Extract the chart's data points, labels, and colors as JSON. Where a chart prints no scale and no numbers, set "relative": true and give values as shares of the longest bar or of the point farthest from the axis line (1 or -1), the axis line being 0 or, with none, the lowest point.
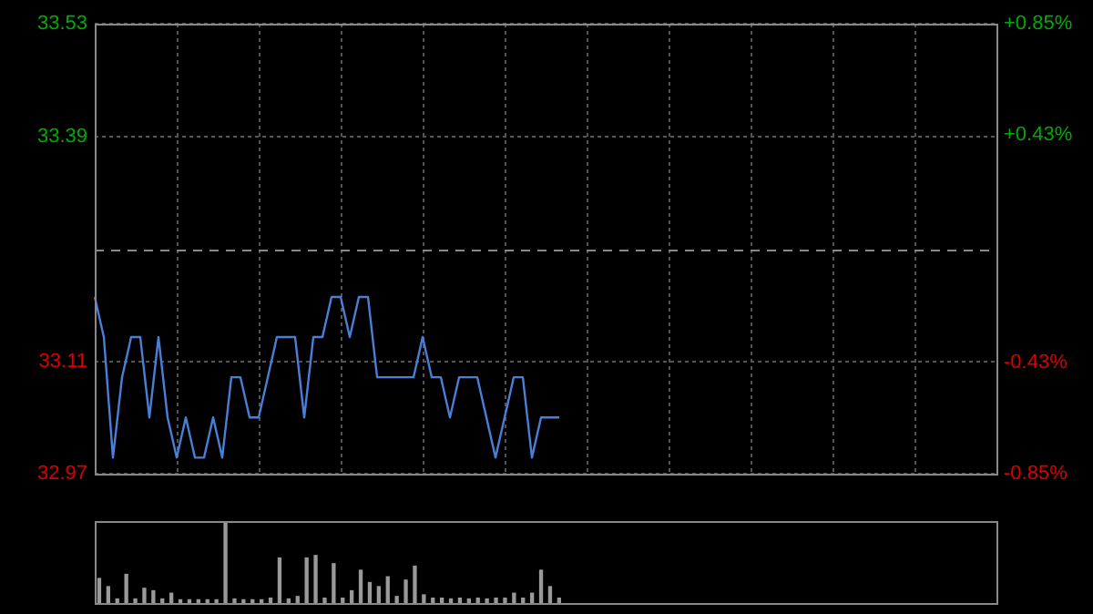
{
  "chart_data": [
    {
      "type": "line",
      "categories": [
        null,
        null,
        null,
        null,
        null,
        null,
        null,
        null,
        null,
        null,
        null,
        null,
        null,
        null,
        null,
        null,
        null,
        null,
        null,
        null,
        null,
        null,
        null,
        null,
        null,
        null,
        null,
        null,
        null,
        null,
        null,
        null,
        null,
        null,
        null,
        null,
        null,
        null,
        null,
        null,
        null,
        null,
        null,
        null,
        null,
        null,
        null,
        null,
        null,
        null,
        null,
        null,
        null,
        null,
        null,
        null,
        null,
        null,
        null,
        null,
        null,
        null,
        null,
        null,
        null,
        null,
        null,
        null,
        null,
        null,
        null,
        null,
        null,
        null,
        null,
        null,
        null,
        null,
        null,
        null,
        null,
        null,
        null,
        null,
        null,
        null,
        null,
        null,
        null,
        null,
        null,
        null,
        null,
        null,
        null,
        null,
        null,
        null,
        null,
        null
      ],
      "series": [
        {
          "color": "#4a7fd8",
          "values": [
            33.19,
            33.14,
            32.99,
            33.09,
            33.14,
            33.14,
            33.04,
            33.14,
            33.04,
            32.99,
            33.04,
            32.99,
            32.99,
            33.04,
            32.99,
            33.09,
            33.09,
            33.04,
            33.04,
            33.09,
            33.14,
            33.14,
            33.14,
            33.04,
            33.14,
            33.14,
            33.19,
            33.19,
            33.14,
            33.19,
            33.19,
            33.09,
            33.09,
            33.09,
            33.09,
            33.09,
            33.14,
            33.09,
            33.09,
            33.04,
            33.09,
            33.09,
            33.09,
            33.04,
            32.99,
            33.04,
            33.09,
            33.09,
            32.99,
            33.04,
            33.04,
            33.04,
            null,
            null,
            null,
            null,
            null,
            null,
            null,
            null,
            null,
            null,
            null,
            null,
            null,
            null,
            null,
            null,
            null,
            null,
            null,
            null,
            null,
            null,
            null,
            null,
            null,
            null,
            null,
            null,
            null,
            null,
            null,
            null,
            null,
            null,
            null,
            null,
            null,
            null,
            null,
            null,
            null,
            null,
            null,
            null,
            null,
            null,
            null,
            null
          ]
        }
      ],
      "ylim": [
        32.97,
        33.53
      ],
      "yticks": [
        32.97,
        33.11,
        33.39,
        33.53
      ],
      "y2lim": [
        -0.85,
        0.85
      ],
      "y2ticks": [
        {
          "value": -0.85,
          "label": "-0.85%"
        },
        {
          "value": -0.43,
          "label": "-0.43%"
        },
        {
          "value": 0.43,
          "label": "+0.43%"
        },
        {
          "value": 0.85,
          "label": "+0.85%"
        }
      ],
      "ref_lines": [
        {
          "axis": "y",
          "value": 33.25,
          "color": "#888888",
          "line_style": "dashed"
        }
      ],
      "grid": true,
      "legend": false,
      "marker": "none",
      "tick_labels": "y"
    },
    {
      "type": "bar",
      "relative": true,
      "categories": [
        null,
        null,
        null,
        null,
        null,
        null,
        null,
        null,
        null,
        null,
        null,
        null,
        null,
        null,
        null,
        null,
        null,
        null,
        null,
        null,
        null,
        null,
        null,
        null,
        null,
        null,
        null,
        null,
        null,
        null,
        null,
        null,
        null,
        null,
        null,
        null,
        null,
        null,
        null,
        null,
        null,
        null,
        null,
        null,
        null,
        null,
        null,
        null,
        null,
        null,
        null,
        null,
        null,
        null,
        null,
        null,
        null,
        null,
        null,
        null,
        null,
        null,
        null,
        null,
        null,
        null,
        null,
        null,
        null,
        null,
        null,
        null,
        null,
        null,
        null,
        null,
        null,
        null,
        null,
        null,
        null,
        null,
        null,
        null,
        null,
        null,
        null,
        null,
        null,
        null,
        null,
        null,
        null,
        null,
        null,
        null,
        null,
        null,
        null,
        null
      ],
      "series": [
        {
          "color": "#999999",
          "values": [
            0.3,
            0.2,
            0.05,
            0.35,
            0.05,
            0.18,
            0.15,
            0.05,
            0.12,
            0.04,
            0.04,
            0.04,
            0.04,
            0.04,
            1,
            0.05,
            0.04,
            0.04,
            0.04,
            0.06,
            0.55,
            0.05,
            0.08,
            0.55,
            0.58,
            0.06,
            0.48,
            0.06,
            0.15,
            0.4,
            0.25,
            0.2,
            0.32,
            0.08,
            0.28,
            0.45,
            0.1,
            0.06,
            0.06,
            0.05,
            0.06,
            0.05,
            0.06,
            0.05,
            0.06,
            0.06,
            0.12,
            0.06,
            0.12,
            0.4,
            0.2,
            0.06,
            null,
            null,
            null,
            null,
            null,
            null,
            null,
            null,
            null,
            null,
            null,
            null,
            null,
            null,
            null,
            null,
            null,
            null,
            null,
            null,
            null,
            null,
            null,
            null,
            null,
            null,
            null,
            null,
            null,
            null,
            null,
            null,
            null,
            null,
            null,
            null,
            null,
            null,
            null,
            null,
            null,
            null,
            null,
            null,
            null,
            null,
            null,
            null
          ]
        }
      ],
      "legend": false,
      "tick_labels": false
    }
  ]
}
